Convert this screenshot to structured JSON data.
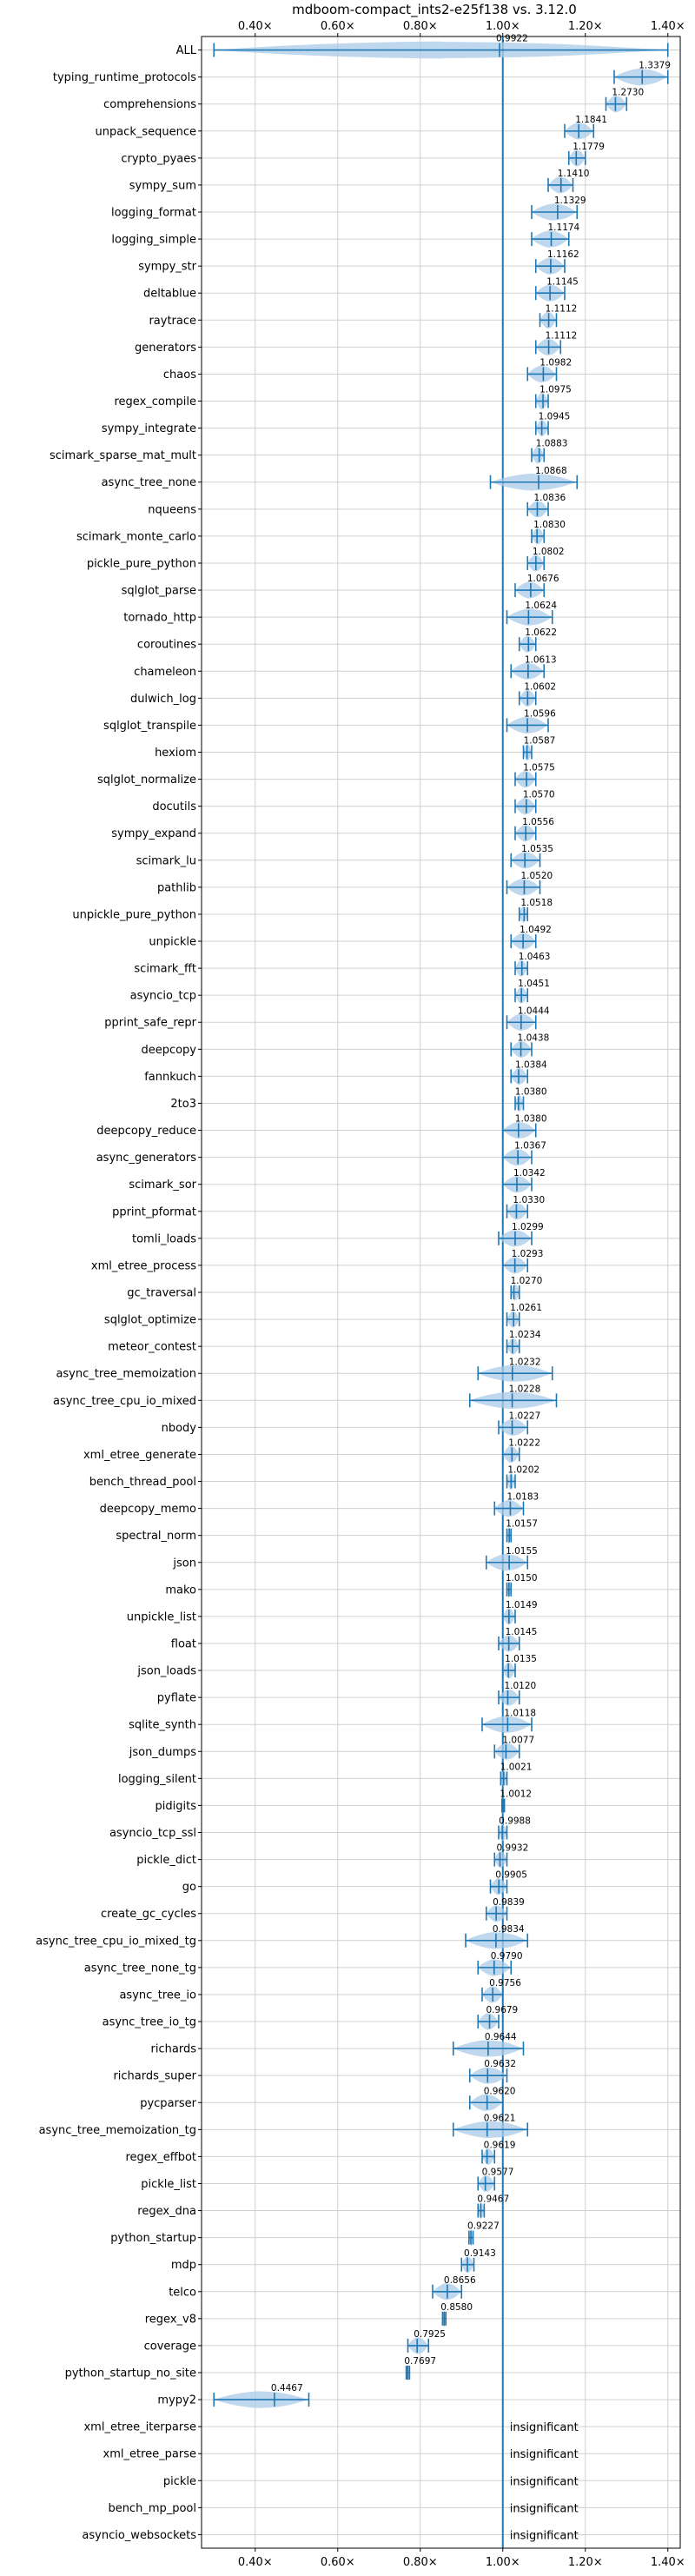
{
  "chart_data": {
    "type": "violin",
    "title": "mdboom-compact_ints2-e25f138 vs. 3.12.0",
    "xlabel": "",
    "ylabel": "",
    "xlim": [
      0.27,
      1.43
    ],
    "xticks": [
      0.4,
      0.6,
      0.8,
      1.0,
      1.2,
      1.4
    ],
    "xtick_labels": [
      "0.40×",
      "0.60×",
      "0.80×",
      "1.00×",
      "1.20×",
      "1.40×"
    ],
    "reference_line": 1.0,
    "grid": true,
    "colors": {
      "violin": "#a9cbe8",
      "marker": "#1f77b4",
      "reference": "#1f77b4",
      "grid": "#d0d0d0"
    },
    "rows": [
      {
        "name": "ALL",
        "value": 0.9922,
        "label": "0.9922",
        "min": 0.3,
        "max": 1.4
      },
      {
        "name": "typing_runtime_protocols",
        "value": 1.3379,
        "label": "1.3379",
        "min": 1.27,
        "max": 1.4
      },
      {
        "name": "comprehensions",
        "value": 1.273,
        "label": "1.2730",
        "min": 1.25,
        "max": 1.3
      },
      {
        "name": "unpack_sequence",
        "value": 1.1841,
        "label": "1.1841",
        "min": 1.15,
        "max": 1.22
      },
      {
        "name": "crypto_pyaes",
        "value": 1.1779,
        "label": "1.1779",
        "min": 1.16,
        "max": 1.2
      },
      {
        "name": "sympy_sum",
        "value": 1.141,
        "label": "1.1410",
        "min": 1.11,
        "max": 1.17
      },
      {
        "name": "logging_format",
        "value": 1.1329,
        "label": "1.1329",
        "min": 1.07,
        "max": 1.18
      },
      {
        "name": "logging_simple",
        "value": 1.1174,
        "label": "1.1174",
        "min": 1.07,
        "max": 1.16
      },
      {
        "name": "sympy_str",
        "value": 1.1162,
        "label": "1.1162",
        "min": 1.08,
        "max": 1.15
      },
      {
        "name": "deltablue",
        "value": 1.1145,
        "label": "1.1145",
        "min": 1.08,
        "max": 1.15
      },
      {
        "name": "raytrace",
        "value": 1.1112,
        "label": "1.1112",
        "min": 1.09,
        "max": 1.13
      },
      {
        "name": "generators",
        "value": 1.1112,
        "label": "1.1112",
        "min": 1.08,
        "max": 1.14
      },
      {
        "name": "chaos",
        "value": 1.0982,
        "label": "1.0982",
        "min": 1.06,
        "max": 1.13
      },
      {
        "name": "regex_compile",
        "value": 1.0975,
        "label": "1.0975",
        "min": 1.08,
        "max": 1.11
      },
      {
        "name": "sympy_integrate",
        "value": 1.0945,
        "label": "1.0945",
        "min": 1.08,
        "max": 1.11
      },
      {
        "name": "scimark_sparse_mat_mult",
        "value": 1.0883,
        "label": "1.0883",
        "min": 1.07,
        "max": 1.1
      },
      {
        "name": "async_tree_none",
        "value": 1.0868,
        "label": "1.0868",
        "min": 0.97,
        "max": 1.18
      },
      {
        "name": "nqueens",
        "value": 1.0836,
        "label": "1.0836",
        "min": 1.06,
        "max": 1.11
      },
      {
        "name": "scimark_monte_carlo",
        "value": 1.083,
        "label": "1.0830",
        "min": 1.07,
        "max": 1.1
      },
      {
        "name": "pickle_pure_python",
        "value": 1.0802,
        "label": "1.0802",
        "min": 1.06,
        "max": 1.1
      },
      {
        "name": "sqlglot_parse",
        "value": 1.0676,
        "label": "1.0676",
        "min": 1.03,
        "max": 1.1
      },
      {
        "name": "tornado_http",
        "value": 1.0624,
        "label": "1.0624",
        "min": 1.01,
        "max": 1.12
      },
      {
        "name": "coroutines",
        "value": 1.0622,
        "label": "1.0622",
        "min": 1.04,
        "max": 1.08
      },
      {
        "name": "chameleon",
        "value": 1.0613,
        "label": "1.0613",
        "min": 1.02,
        "max": 1.1
      },
      {
        "name": "dulwich_log",
        "value": 1.0602,
        "label": "1.0602",
        "min": 1.04,
        "max": 1.08
      },
      {
        "name": "sqlglot_transpile",
        "value": 1.0596,
        "label": "1.0596",
        "min": 1.01,
        "max": 1.11
      },
      {
        "name": "hexiom",
        "value": 1.0587,
        "label": "1.0587",
        "min": 1.05,
        "max": 1.07
      },
      {
        "name": "sqlglot_normalize",
        "value": 1.0575,
        "label": "1.0575",
        "min": 1.03,
        "max": 1.08
      },
      {
        "name": "docutils",
        "value": 1.057,
        "label": "1.0570",
        "min": 1.03,
        "max": 1.08
      },
      {
        "name": "sympy_expand",
        "value": 1.0556,
        "label": "1.0556",
        "min": 1.03,
        "max": 1.08
      },
      {
        "name": "scimark_lu",
        "value": 1.0535,
        "label": "1.0535",
        "min": 1.02,
        "max": 1.09
      },
      {
        "name": "pathlib",
        "value": 1.052,
        "label": "1.0520",
        "min": 1.01,
        "max": 1.09
      },
      {
        "name": "unpickle_pure_python",
        "value": 1.0518,
        "label": "1.0518",
        "min": 1.04,
        "max": 1.06
      },
      {
        "name": "unpickle",
        "value": 1.0492,
        "label": "1.0492",
        "min": 1.02,
        "max": 1.08
      },
      {
        "name": "scimark_fft",
        "value": 1.0463,
        "label": "1.0463",
        "min": 1.03,
        "max": 1.06
      },
      {
        "name": "asyncio_tcp",
        "value": 1.0451,
        "label": "1.0451",
        "min": 1.03,
        "max": 1.06
      },
      {
        "name": "pprint_safe_repr",
        "value": 1.0444,
        "label": "1.0444",
        "min": 1.01,
        "max": 1.08
      },
      {
        "name": "deepcopy",
        "value": 1.0438,
        "label": "1.0438",
        "min": 1.02,
        "max": 1.07
      },
      {
        "name": "fannkuch",
        "value": 1.0384,
        "label": "1.0384",
        "min": 1.02,
        "max": 1.06
      },
      {
        "name": "2to3",
        "value": 1.038,
        "label": "1.0380",
        "min": 1.03,
        "max": 1.05
      },
      {
        "name": "deepcopy_reduce",
        "value": 1.038,
        "label": "1.0380",
        "min": 1.0,
        "max": 1.08
      },
      {
        "name": "async_generators",
        "value": 1.0367,
        "label": "1.0367",
        "min": 1.0,
        "max": 1.07
      },
      {
        "name": "scimark_sor",
        "value": 1.0342,
        "label": "1.0342",
        "min": 1.0,
        "max": 1.07
      },
      {
        "name": "pprint_pformat",
        "value": 1.033,
        "label": "1.0330",
        "min": 1.01,
        "max": 1.06
      },
      {
        "name": "tomli_loads",
        "value": 1.0299,
        "label": "1.0299",
        "min": 0.99,
        "max": 1.07
      },
      {
        "name": "xml_etree_process",
        "value": 1.0293,
        "label": "1.0293",
        "min": 1.0,
        "max": 1.06
      },
      {
        "name": "gc_traversal",
        "value": 1.027,
        "label": "1.0270",
        "min": 1.02,
        "max": 1.04
      },
      {
        "name": "sqlglot_optimize",
        "value": 1.0261,
        "label": "1.0261",
        "min": 1.01,
        "max": 1.04
      },
      {
        "name": "meteor_contest",
        "value": 1.0234,
        "label": "1.0234",
        "min": 1.01,
        "max": 1.04
      },
      {
        "name": "async_tree_memoization",
        "value": 1.0232,
        "label": "1.0232",
        "min": 0.94,
        "max": 1.12
      },
      {
        "name": "async_tree_cpu_io_mixed",
        "value": 1.0228,
        "label": "1.0228",
        "min": 0.92,
        "max": 1.13
      },
      {
        "name": "nbody",
        "value": 1.0227,
        "label": "1.0227",
        "min": 0.99,
        "max": 1.06
      },
      {
        "name": "xml_etree_generate",
        "value": 1.0222,
        "label": "1.0222",
        "min": 1.0,
        "max": 1.04
      },
      {
        "name": "bench_thread_pool",
        "value": 1.0202,
        "label": "1.0202",
        "min": 1.01,
        "max": 1.03
      },
      {
        "name": "deepcopy_memo",
        "value": 1.0183,
        "label": "1.0183",
        "min": 0.98,
        "max": 1.05
      },
      {
        "name": "spectral_norm",
        "value": 1.0157,
        "label": "1.0157",
        "min": 1.01,
        "max": 1.02
      },
      {
        "name": "json",
        "value": 1.0155,
        "label": "1.0155",
        "min": 0.96,
        "max": 1.06
      },
      {
        "name": "mako",
        "value": 1.015,
        "label": "1.0150",
        "min": 1.01,
        "max": 1.02
      },
      {
        "name": "unpickle_list",
        "value": 1.0149,
        "label": "1.0149",
        "min": 1.0,
        "max": 1.03
      },
      {
        "name": "float",
        "value": 1.0145,
        "label": "1.0145",
        "min": 0.99,
        "max": 1.04
      },
      {
        "name": "json_loads",
        "value": 1.0135,
        "label": "1.0135",
        "min": 1.0,
        "max": 1.03
      },
      {
        "name": "pyflate",
        "value": 1.012,
        "label": "1.0120",
        "min": 0.99,
        "max": 1.04
      },
      {
        "name": "sqlite_synth",
        "value": 1.0118,
        "label": "1.0118",
        "min": 0.95,
        "max": 1.07
      },
      {
        "name": "json_dumps",
        "value": 1.0077,
        "label": "1.0077",
        "min": 0.98,
        "max": 1.04
      },
      {
        "name": "logging_silent",
        "value": 1.0021,
        "label": "1.0021",
        "min": 0.995,
        "max": 1.01
      },
      {
        "name": "pidigits",
        "value": 1.0012,
        "label": "1.0012",
        "min": 0.998,
        "max": 1.004
      },
      {
        "name": "asyncio_tcp_ssl",
        "value": 0.9988,
        "label": "0.9988",
        "min": 0.99,
        "max": 1.01
      },
      {
        "name": "pickle_dict",
        "value": 0.9932,
        "label": "0.9932",
        "min": 0.98,
        "max": 1.01
      },
      {
        "name": "go",
        "value": 0.9905,
        "label": "0.9905",
        "min": 0.97,
        "max": 1.01
      },
      {
        "name": "create_gc_cycles",
        "value": 0.9839,
        "label": "0.9839",
        "min": 0.96,
        "max": 1.01
      },
      {
        "name": "async_tree_cpu_io_mixed_tg",
        "value": 0.9834,
        "label": "0.9834",
        "min": 0.91,
        "max": 1.06
      },
      {
        "name": "async_tree_none_tg",
        "value": 0.979,
        "label": "0.9790",
        "min": 0.94,
        "max": 1.02
      },
      {
        "name": "async_tree_io",
        "value": 0.9756,
        "label": "0.9756",
        "min": 0.95,
        "max": 1.0
      },
      {
        "name": "async_tree_io_tg",
        "value": 0.9679,
        "label": "0.9679",
        "min": 0.94,
        "max": 0.99
      },
      {
        "name": "richards",
        "value": 0.9644,
        "label": "0.9644",
        "min": 0.88,
        "max": 1.05
      },
      {
        "name": "richards_super",
        "value": 0.9632,
        "label": "0.9632",
        "min": 0.92,
        "max": 1.01
      },
      {
        "name": "pycparser",
        "value": 0.962,
        "label": "0.9620",
        "min": 0.92,
        "max": 1.0
      },
      {
        "name": "async_tree_memoization_tg",
        "value": 0.9621,
        "label": "0.9621",
        "min": 0.88,
        "max": 1.06
      },
      {
        "name": "regex_effbot",
        "value": 0.9619,
        "label": "0.9619",
        "min": 0.95,
        "max": 0.98
      },
      {
        "name": "pickle_list",
        "value": 0.9577,
        "label": "0.9577",
        "min": 0.94,
        "max": 0.98
      },
      {
        "name": "regex_dna",
        "value": 0.9467,
        "label": "0.9467",
        "min": 0.94,
        "max": 0.955
      },
      {
        "name": "python_startup",
        "value": 0.9227,
        "label": "0.9227",
        "min": 0.918,
        "max": 0.928
      },
      {
        "name": "mdp",
        "value": 0.9143,
        "label": "0.9143",
        "min": 0.9,
        "max": 0.93
      },
      {
        "name": "telco",
        "value": 0.8656,
        "label": "0.8656",
        "min": 0.83,
        "max": 0.9
      },
      {
        "name": "regex_v8",
        "value": 0.858,
        "label": "0.8580",
        "min": 0.854,
        "max": 0.862
      },
      {
        "name": "coverage",
        "value": 0.7925,
        "label": "0.7925",
        "min": 0.77,
        "max": 0.82
      },
      {
        "name": "python_startup_no_site",
        "value": 0.7697,
        "label": "0.7697",
        "min": 0.766,
        "max": 0.774
      },
      {
        "name": "mypy2",
        "value": 0.4467,
        "label": "0.4467",
        "min": 0.3,
        "max": 0.53
      },
      {
        "name": "xml_etree_iterparse",
        "value": null,
        "label": "insignificant"
      },
      {
        "name": "xml_etree_parse",
        "value": null,
        "label": "insignificant"
      },
      {
        "name": "pickle",
        "value": null,
        "label": "insignificant"
      },
      {
        "name": "bench_mp_pool",
        "value": null,
        "label": "insignificant"
      },
      {
        "name": "asyncio_websockets",
        "value": null,
        "label": "insignificant"
      }
    ]
  }
}
